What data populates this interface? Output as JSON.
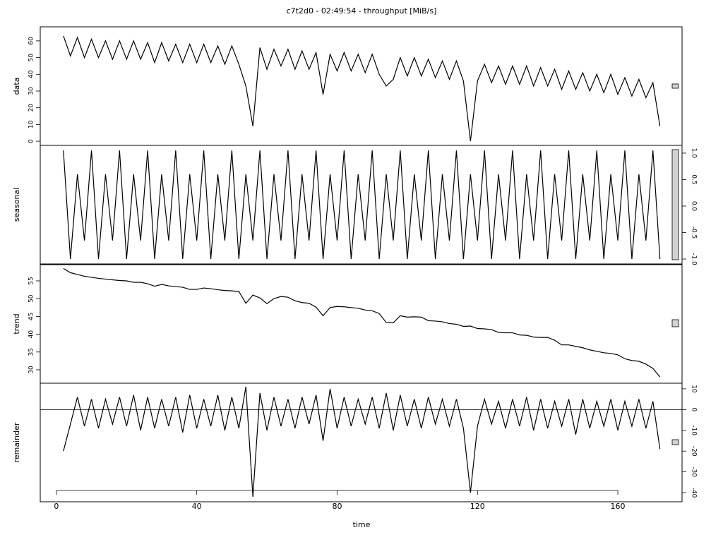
{
  "chart_data": {
    "type": "stl",
    "title": "c7t2d0 - 02:49:54 - throughput [MiB/s]",
    "xlabel": "time",
    "xlim": [
      -4.6,
      178.3
    ],
    "xticks": [
      0,
      40,
      80,
      120,
      160
    ],
    "x": [
      2,
      4,
      6,
      8,
      10,
      12,
      14,
      16,
      18,
      20,
      22,
      24,
      26,
      28,
      30,
      32,
      34,
      36,
      38,
      40,
      42,
      44,
      46,
      48,
      50,
      52,
      54,
      56,
      58,
      60,
      62,
      64,
      66,
      68,
      70,
      72,
      74,
      76,
      78,
      80,
      82,
      84,
      86,
      88,
      90,
      92,
      94,
      96,
      98,
      100,
      102,
      104,
      106,
      108,
      110,
      112,
      114,
      116,
      118,
      120,
      122,
      124,
      126,
      128,
      130,
      132,
      134,
      136,
      138,
      140,
      142,
      144,
      146,
      148,
      150,
      152,
      154,
      156,
      158,
      160,
      162,
      164,
      166,
      168,
      170,
      172
    ],
    "series": [
      {
        "name": "data",
        "color": "#000000",
        "axis_side": "left",
        "ylim": [
          -2.5,
          68.4
        ],
        "yticks": [
          0,
          10,
          20,
          30,
          40,
          50,
          60
        ],
        "values": [
          63,
          51,
          62,
          50,
          61,
          50,
          60,
          49,
          60,
          49,
          60,
          49,
          59,
          47,
          59,
          48,
          58,
          47,
          58,
          47,
          58,
          47,
          57,
          46,
          57,
          46,
          33,
          9,
          56,
          43,
          55,
          45,
          55,
          43,
          54,
          43,
          53,
          28,
          52,
          42,
          53,
          42,
          52,
          41,
          52,
          40,
          33,
          37,
          50,
          39,
          50,
          39,
          49,
          38,
          48,
          37,
          48,
          36,
          0,
          36,
          46,
          35,
          45,
          34,
          45,
          34,
          45,
          33,
          44,
          33,
          43,
          31,
          42,
          31,
          41,
          30,
          40,
          29,
          40,
          28,
          38,
          27,
          37,
          26,
          35,
          9
        ]
      },
      {
        "name": "seasonal",
        "color": "#000000",
        "axis_side": "right",
        "ylim": [
          -1.093,
          1.146
        ],
        "yticks": [
          {
            "value": -1,
            "label": "-1.0"
          },
          -0.5,
          {
            "value": 0,
            "label": "0.0"
          },
          0.5,
          {
            "value": 1,
            "label": "1.0"
          }
        ],
        "values": [
          1.05,
          -1.0,
          0.6,
          -0.65,
          1.05,
          -1.0,
          0.6,
          -0.65,
          1.05,
          -1.0,
          0.6,
          -0.65,
          1.05,
          -1.0,
          0.6,
          -0.65,
          1.05,
          -1.0,
          0.6,
          -0.65,
          1.05,
          -1.0,
          0.6,
          -0.65,
          1.05,
          -1.0,
          0.6,
          -0.65,
          1.05,
          -1.0,
          0.6,
          -0.65,
          1.05,
          -1.0,
          0.6,
          -0.65,
          1.05,
          -1.0,
          0.6,
          -0.65,
          1.05,
          -1.0,
          0.6,
          -0.65,
          1.05,
          -1.0,
          0.6,
          -0.65,
          1.05,
          -1.0,
          0.6,
          -0.65,
          1.05,
          -1.0,
          0.6,
          -0.65,
          1.05,
          -1.0,
          0.6,
          -0.65,
          1.05,
          -1.0,
          0.6,
          -0.65,
          1.05,
          -1.0,
          0.6,
          -0.65,
          1.05,
          -1.0,
          0.6,
          -0.65,
          1.05,
          -1.0,
          0.6,
          -0.65,
          1.05,
          -1.0,
          0.6,
          -0.65,
          1.05,
          -1.0,
          0.6,
          -0.65,
          1.05,
          -1.0
        ]
      },
      {
        "name": "trend",
        "color": "#000000",
        "axis_side": "left",
        "ylim": [
          26.23,
          59.56
        ],
        "yticks": [
          30,
          35,
          40,
          45,
          50,
          55
        ],
        "values": [
          58.5,
          57.3,
          56.8,
          56.3,
          56,
          55.7,
          55.5,
          55.3,
          55.1,
          55,
          54.6,
          54.6,
          54.2,
          53.5,
          54,
          53.6,
          53.4,
          53.2,
          52.6,
          52.6,
          53,
          52.8,
          52.5,
          52.3,
          52.2,
          52,
          48.7,
          51,
          50.2,
          48.6,
          50,
          50.6,
          50.4,
          49.4,
          48.9,
          48.7,
          47.6,
          45.2,
          47.5,
          47.8,
          47.7,
          47.5,
          47.3,
          46.8,
          46.6,
          45.8,
          43.3,
          43.2,
          45.2,
          44.8,
          44.9,
          44.8,
          43.8,
          43.7,
          43.5,
          43,
          42.8,
          42.2,
          42.3,
          41.6,
          41.5,
          41.3,
          40.5,
          40.4,
          40.4,
          39.8,
          39.7,
          39.2,
          39.1,
          39.1,
          38.3,
          37,
          37,
          36.6,
          36.2,
          35.6,
          35.2,
          34.8,
          34.6,
          34.2,
          33.1,
          32.6,
          32.4,
          31.6,
          30.4,
          28
        ]
      },
      {
        "name": "remainder",
        "color": "#000000",
        "axis_side": "right",
        "ylim": [
          -44.4,
          12.7
        ],
        "yticks": [
          -40,
          -30,
          -20,
          -10,
          0,
          10
        ],
        "reference_line": 0,
        "values": [
          -20,
          -7,
          6,
          -8,
          5,
          -9,
          5,
          -7,
          6,
          -8,
          7,
          -10,
          6,
          -9,
          5,
          -8,
          6,
          -11,
          7,
          -9,
          5,
          -8,
          7,
          -10,
          6,
          -9,
          11,
          -42,
          8,
          -10,
          6,
          -8,
          5,
          -9,
          6,
          -7,
          7,
          -15,
          10,
          -9,
          6,
          -8,
          5,
          -7,
          6,
          -9,
          8,
          -10,
          7,
          -8,
          5,
          -9,
          6,
          -7,
          5,
          -8,
          5,
          -9,
          -40,
          -8,
          5,
          -7,
          4,
          -9,
          5,
          -8,
          6,
          -10,
          5,
          -9,
          4,
          -8,
          5,
          -12,
          5,
          -9,
          4,
          -8,
          5,
          -10,
          4,
          -8,
          5,
          -9,
          4,
          -19
        ]
      }
    ]
  }
}
